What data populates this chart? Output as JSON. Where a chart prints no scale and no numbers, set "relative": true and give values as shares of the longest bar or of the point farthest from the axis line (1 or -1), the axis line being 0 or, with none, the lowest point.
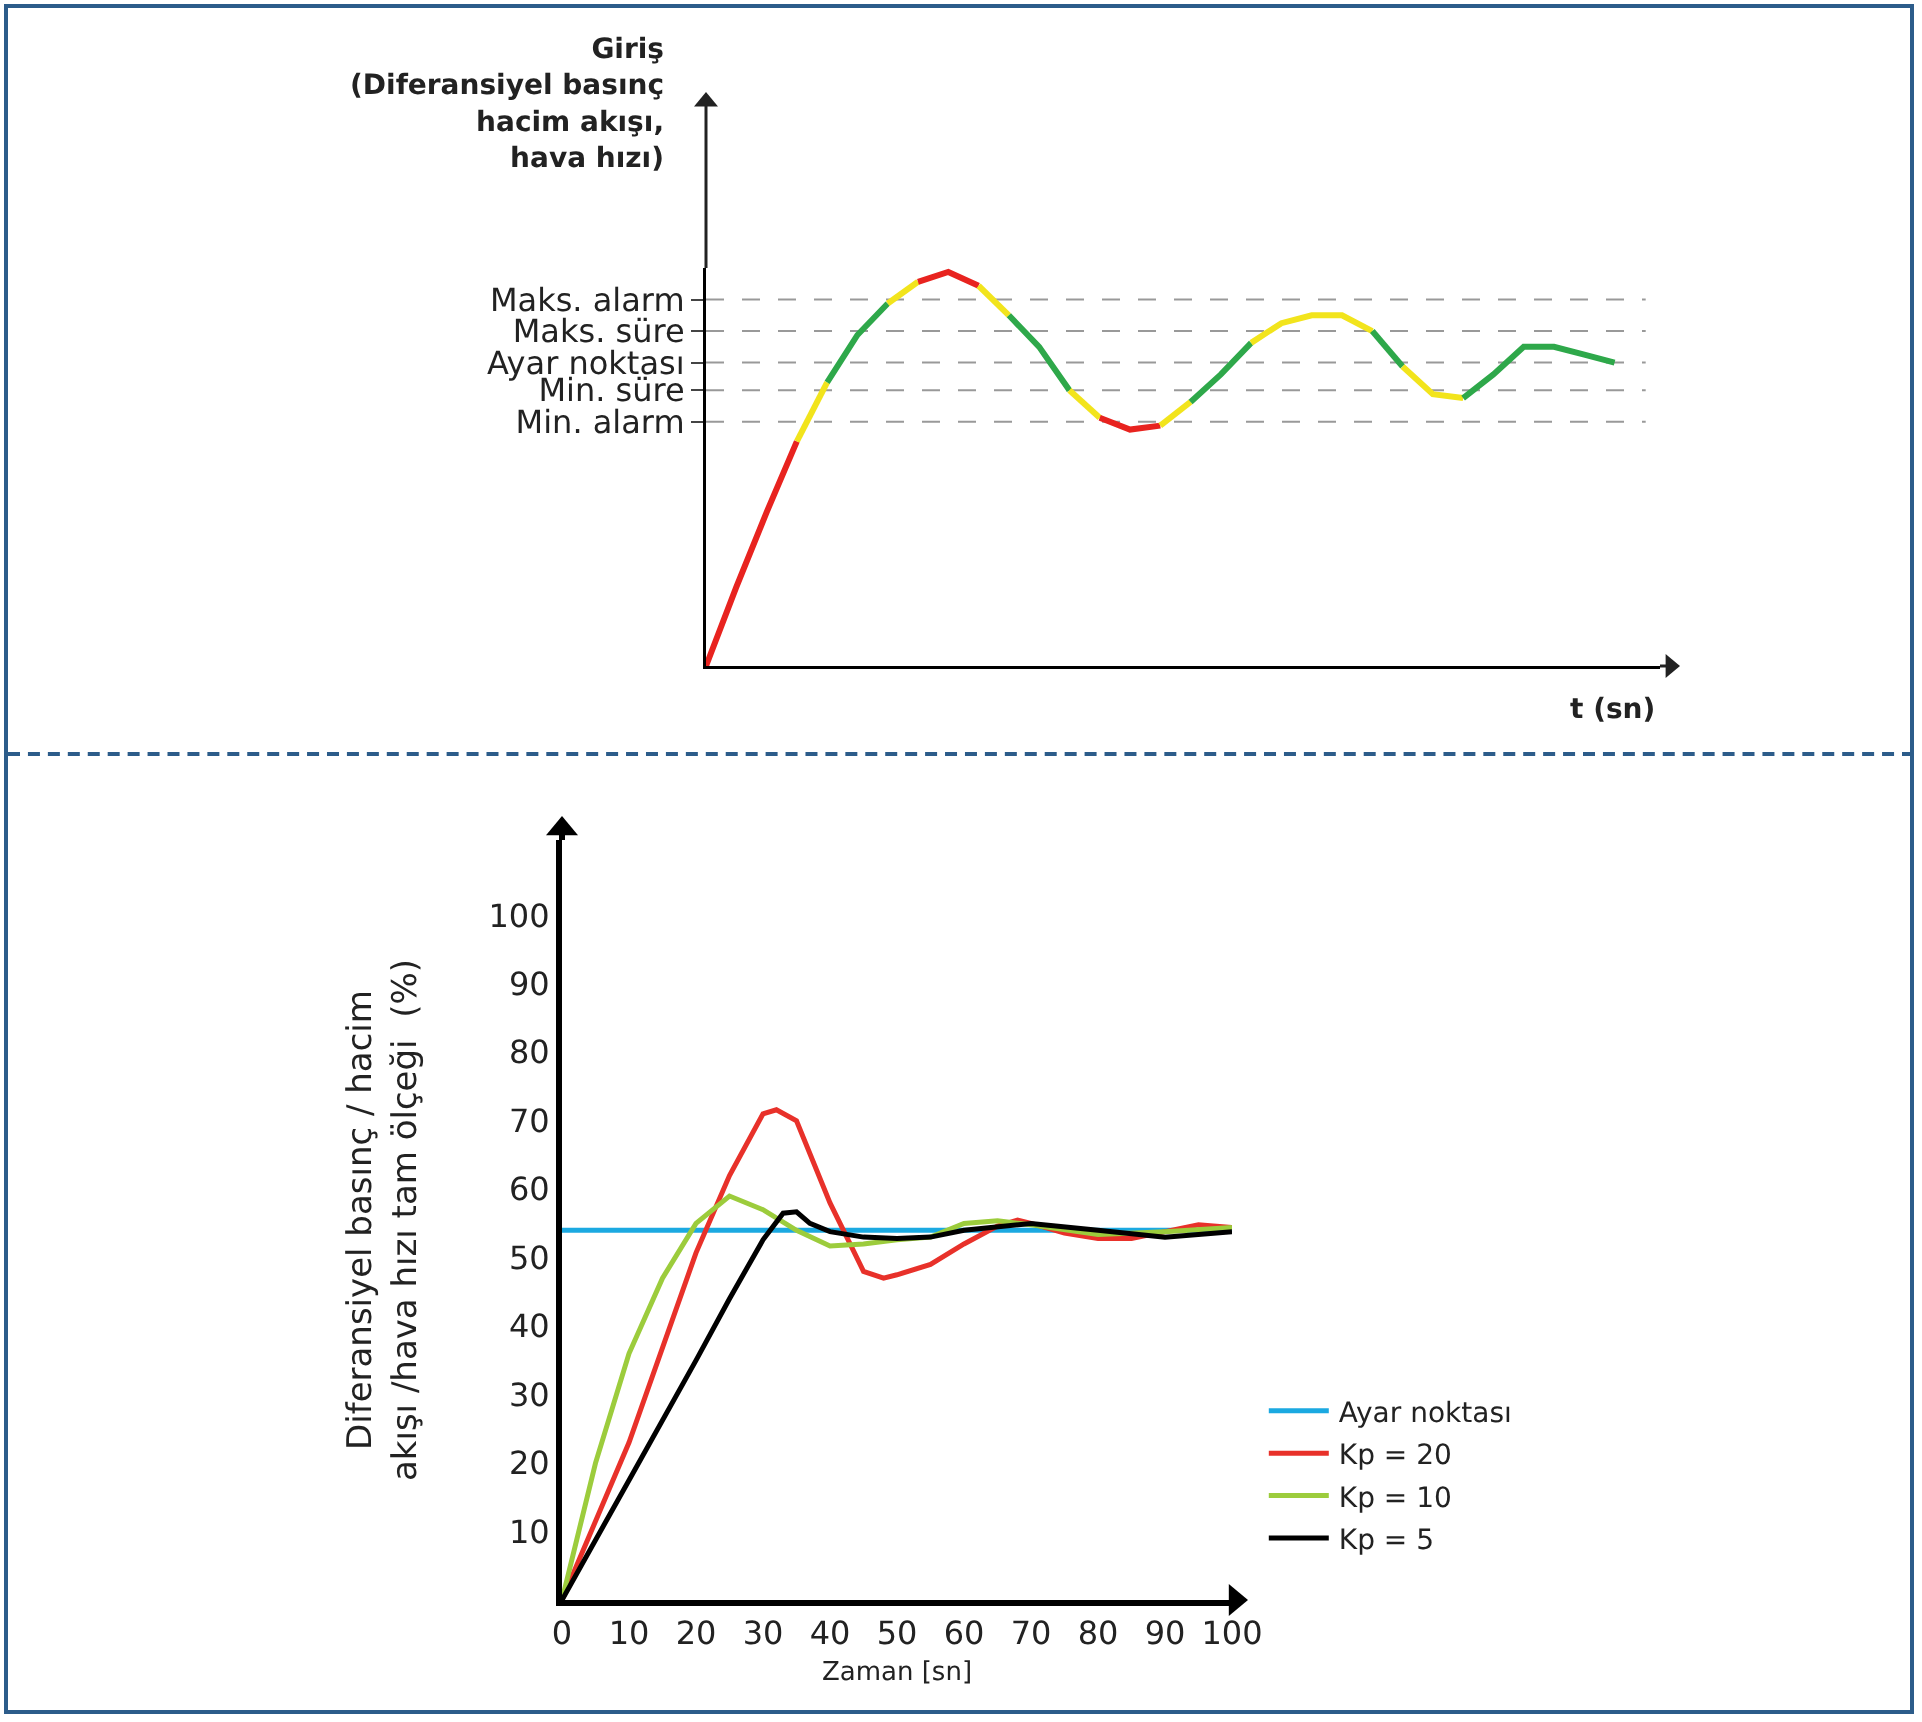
{
  "chart_data": [
    {
      "type": "line",
      "relative": true,
      "ylabel": "Giriş\n(Diferansiyel basınç\nhacim akışı,\nhava hızı)",
      "xlabel": "t (sn)",
      "categories": [
        null,
        null,
        null,
        null,
        null,
        null,
        null,
        null,
        null,
        null,
        null,
        null,
        null,
        null,
        null,
        null,
        null,
        null,
        null,
        null,
        null,
        null,
        null,
        null,
        null,
        null,
        null,
        null,
        null,
        null,
        null
      ],
      "series": [
        {
          "color": "#e8231f",
          "values": [
            0,
            0.2,
            0.39,
            0.57,
            null,
            null,
            null,
            null,
            null,
            null,
            null,
            null,
            null,
            null,
            null,
            null,
            null,
            null,
            null,
            null,
            null,
            null,
            null,
            null,
            null,
            null,
            null,
            null,
            null,
            null,
            null
          ]
        },
        {
          "color": "#f2e41c",
          "values": [
            null,
            null,
            null,
            0.57,
            0.72,
            null,
            null,
            null,
            null,
            null,
            null,
            null,
            null,
            null,
            null,
            null,
            null,
            null,
            null,
            null,
            null,
            null,
            null,
            null,
            null,
            null,
            null,
            null,
            null,
            null,
            null
          ]
        },
        {
          "color": "#2ea84a",
          "values": [
            null,
            null,
            null,
            null,
            0.72,
            0.84,
            0.92,
            null,
            null,
            null,
            null,
            null,
            null,
            null,
            null,
            null,
            null,
            null,
            null,
            null,
            null,
            null,
            null,
            null,
            null,
            null,
            null,
            null,
            null,
            null,
            null
          ]
        },
        {
          "color": "#f2e41c",
          "values": [
            null,
            null,
            null,
            null,
            null,
            null,
            0.92,
            0.975,
            null,
            null,
            null,
            null,
            null,
            null,
            null,
            null,
            null,
            null,
            null,
            null,
            null,
            null,
            null,
            null,
            null,
            null,
            null,
            null,
            null,
            null,
            null
          ]
        },
        {
          "color": "#e8231f",
          "values": [
            null,
            null,
            null,
            null,
            null,
            null,
            null,
            0.975,
            1.0,
            0.965,
            null,
            null,
            null,
            null,
            null,
            null,
            null,
            null,
            null,
            null,
            null,
            null,
            null,
            null,
            null,
            null,
            null,
            null,
            null,
            null,
            null
          ]
        },
        {
          "color": "#f2e41c",
          "values": [
            null,
            null,
            null,
            null,
            null,
            null,
            null,
            null,
            null,
            0.965,
            0.89,
            null,
            null,
            null,
            null,
            null,
            null,
            null,
            null,
            null,
            null,
            null,
            null,
            null,
            null,
            null,
            null,
            null,
            null,
            null,
            null
          ]
        },
        {
          "color": "#2ea84a",
          "values": [
            null,
            null,
            null,
            null,
            null,
            null,
            null,
            null,
            null,
            null,
            0.89,
            0.81,
            0.7,
            null,
            null,
            null,
            null,
            null,
            null,
            null,
            null,
            null,
            null,
            null,
            null,
            null,
            null,
            null,
            null,
            null,
            null
          ]
        },
        {
          "color": "#f2e41c",
          "values": [
            null,
            null,
            null,
            null,
            null,
            null,
            null,
            null,
            null,
            null,
            null,
            null,
            0.7,
            0.63,
            null,
            null,
            null,
            null,
            null,
            null,
            null,
            null,
            null,
            null,
            null,
            null,
            null,
            null,
            null,
            null,
            null
          ]
        },
        {
          "color": "#e8231f",
          "values": [
            null,
            null,
            null,
            null,
            null,
            null,
            null,
            null,
            null,
            null,
            null,
            null,
            null,
            0.63,
            0.6,
            0.61,
            null,
            null,
            null,
            null,
            null,
            null,
            null,
            null,
            null,
            null,
            null,
            null,
            null,
            null,
            null
          ]
        },
        {
          "color": "#f2e41c",
          "values": [
            null,
            null,
            null,
            null,
            null,
            null,
            null,
            null,
            null,
            null,
            null,
            null,
            null,
            null,
            null,
            0.61,
            0.67,
            null,
            null,
            null,
            null,
            null,
            null,
            null,
            null,
            null,
            null,
            null,
            null,
            null,
            null
          ]
        },
        {
          "color": "#2ea84a",
          "values": [
            null,
            null,
            null,
            null,
            null,
            null,
            null,
            null,
            null,
            null,
            null,
            null,
            null,
            null,
            null,
            null,
            0.67,
            0.74,
            0.82,
            null,
            null,
            null,
            null,
            null,
            null,
            null,
            null,
            null,
            null,
            null,
            null
          ]
        },
        {
          "color": "#f2e41c",
          "values": [
            null,
            null,
            null,
            null,
            null,
            null,
            null,
            null,
            null,
            null,
            null,
            null,
            null,
            null,
            null,
            null,
            null,
            null,
            0.82,
            0.87,
            0.89,
            0.89,
            0.85,
            null,
            null,
            null,
            null,
            null,
            null,
            null,
            null
          ]
        },
        {
          "color": "#2ea84a",
          "values": [
            null,
            null,
            null,
            null,
            null,
            null,
            null,
            null,
            null,
            null,
            null,
            null,
            null,
            null,
            null,
            null,
            null,
            null,
            null,
            null,
            null,
            null,
            0.85,
            0.76,
            null,
            null,
            null,
            null,
            null,
            null,
            null
          ]
        },
        {
          "color": "#f2e41c",
          "values": [
            null,
            null,
            null,
            null,
            null,
            null,
            null,
            null,
            null,
            null,
            null,
            null,
            null,
            null,
            null,
            null,
            null,
            null,
            null,
            null,
            null,
            null,
            null,
            0.76,
            0.69,
            0.68,
            null,
            null,
            null,
            null,
            null
          ]
        },
        {
          "color": "#2ea84a",
          "values": [
            null,
            null,
            null,
            null,
            null,
            null,
            null,
            null,
            null,
            null,
            null,
            null,
            null,
            null,
            null,
            null,
            null,
            null,
            null,
            null,
            null,
            null,
            null,
            null,
            null,
            0.68,
            0.74,
            0.81,
            0.81,
            0.79,
            0.77
          ]
        }
      ],
      "ref_lines": [
        {
          "axis": "y",
          "value": 0.93,
          "label": "Maks. alarm",
          "color": "#999999",
          "line_style": "dashed"
        },
        {
          "axis": "y",
          "value": 0.85,
          "label": "Maks. süre",
          "color": "#999999",
          "line_style": "dashed"
        },
        {
          "axis": "y",
          "value": 0.77,
          "label": "Ayar noktası",
          "color": "#999999",
          "line_style": "dashed"
        },
        {
          "axis": "y",
          "value": 0.7,
          "label": "Min. süre",
          "color": "#999999",
          "line_style": "dashed"
        },
        {
          "axis": "y",
          "value": 0.62,
          "label": "Min. alarm",
          "color": "#999999",
          "line_style": "dashed"
        }
      ]
    },
    {
      "type": "line",
      "xlabel": "Zaman [sn]",
      "ylabel": "Diferansiyel basınç / hacim\nakışı /hava hızı tam ölçeği  (%)",
      "xlim": [
        0,
        100
      ],
      "xticks": [
        0,
        10,
        20,
        30,
        40,
        50,
        60,
        70,
        80,
        90,
        100
      ],
      "ylim": [
        0,
        111
      ],
      "yticks": [
        10,
        20,
        30,
        40,
        50,
        60,
        70,
        80,
        90,
        100
      ],
      "legend": "bottom right",
      "series": [
        {
          "name": "Ayar noktası",
          "color": "#1ba9e1",
          "x": [
            0,
            100
          ],
          "values": [
            54,
            54
          ]
        },
        {
          "name": "Kp = 20",
          "color": "#e8312a",
          "x": [
            0,
            10,
            20,
            25,
            30,
            32,
            35,
            40,
            43,
            45,
            48,
            50,
            55,
            60,
            65,
            68,
            70,
            75,
            80,
            85,
            90,
            95,
            100
          ],
          "values": [
            0,
            23,
            50.7,
            62,
            71,
            71.6,
            70,
            58,
            52,
            48,
            47,
            47.5,
            49,
            52,
            54.6,
            55.5,
            55,
            53.6,
            52.8,
            52.8,
            53.8,
            54.8,
            54.4
          ]
        },
        {
          "name": "Kp = 10",
          "color": "#9ccc3c",
          "x": [
            0,
            5,
            10,
            15,
            20,
            25,
            30,
            35,
            40,
            45,
            50,
            55,
            60,
            65,
            70,
            80,
            90,
            100
          ],
          "values": [
            0,
            20,
            36,
            47,
            55,
            59,
            57,
            54,
            51.7,
            52,
            52.6,
            53,
            55,
            55.4,
            54.8,
            53.4,
            53.8,
            54.4
          ]
        },
        {
          "name": "Kp = 5",
          "color": "#000000",
          "x": [
            0,
            10,
            20,
            25,
            30,
            33,
            35,
            37,
            40,
            45,
            50,
            55,
            60,
            70,
            80,
            90,
            100
          ],
          "values": [
            0,
            17.5,
            35,
            44,
            52.6,
            56.5,
            56.7,
            55,
            53.8,
            53,
            52.8,
            53,
            54,
            55,
            54,
            53,
            53.8
          ]
        }
      ]
    }
  ]
}
